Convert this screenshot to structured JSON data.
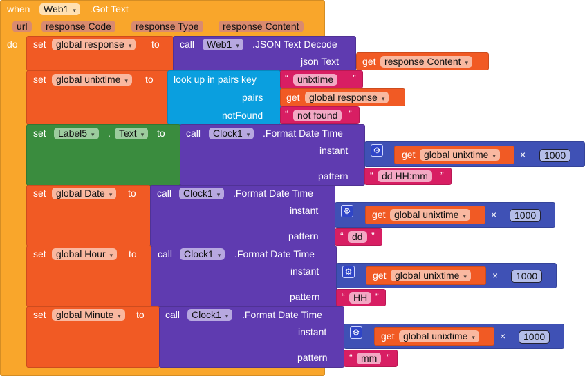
{
  "event": {
    "when": "when",
    "component": "Web1",
    "name": ".Got Text",
    "params": [
      "url",
      "response Code",
      "response Type",
      "response Content"
    ],
    "do": "do"
  },
  "s1": {
    "set": "set",
    "var": "global response",
    "to": "to",
    "call": "call",
    "component": "Web1",
    "method": ".JSON Text Decode",
    "arg": "json Text",
    "get": "get",
    "getvar": "response Content"
  },
  "s2": {
    "set": "set",
    "var": "global unixtime",
    "to": "to",
    "lookup": "look up in pairs  key",
    "key": "unixtime",
    "pairs": "pairs",
    "get": "get",
    "getvar": "global response",
    "notFound": "notFound",
    "nf": "not found"
  },
  "s3": {
    "set": "set",
    "comp": "Label5",
    "dot": ".",
    "prop": "Text",
    "to": "to",
    "call": "call",
    "component": "Clock1",
    "method": ".Format Date Time",
    "instant": "instant",
    "get": "get",
    "getvar": "global unixtime",
    "op": "×",
    "num": "1000",
    "pattern": "pattern",
    "pat": "dd HH:mm"
  },
  "s4": {
    "set": "set",
    "var": "global Date",
    "to": "to",
    "call": "call",
    "component": "Clock1",
    "method": ".Format Date Time",
    "instant": "instant",
    "get": "get",
    "getvar": "global unixtime",
    "op": "×",
    "num": "1000",
    "pattern": "pattern",
    "pat": "dd"
  },
  "s5": {
    "set": "set",
    "var": "global Hour",
    "to": "to",
    "call": "call",
    "component": "Clock1",
    "method": ".Format Date Time",
    "instant": "instant",
    "get": "get",
    "getvar": "global unixtime",
    "op": "×",
    "num": "1000",
    "pattern": "pattern",
    "pat": "HH"
  },
  "s6": {
    "set": "set",
    "var": "global Minute",
    "to": "to",
    "call": "call",
    "component": "Clock1",
    "method": ".Format Date Time",
    "instant": "instant",
    "get": "get",
    "getvar": "global unixtime",
    "op": "×",
    "num": "1000",
    "pattern": "pattern",
    "pat": "mm"
  },
  "quote_open": "“",
  "quote_close": "”",
  "arrow": "▾",
  "gear": "⚙"
}
